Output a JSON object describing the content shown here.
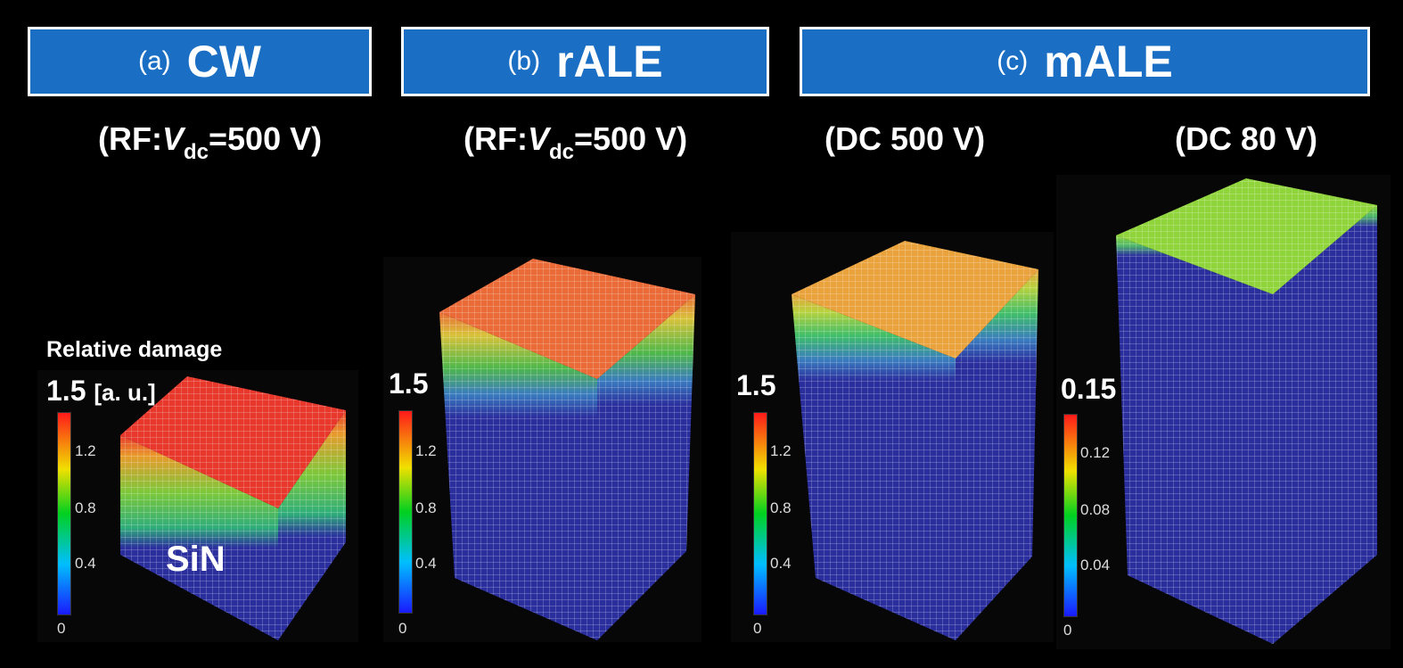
{
  "panels": [
    {
      "tag": "(a)",
      "name": "CW",
      "condition_prefix": "(RF:",
      "condition_v": "V",
      "condition_sub": "dc",
      "condition_suffix": "=500 V)"
    },
    {
      "tag": "(b)",
      "name": "rALE",
      "condition_prefix": "(RF:",
      "condition_v": "V",
      "condition_sub": "dc",
      "condition_suffix": "=500 V)"
    },
    {
      "tag": "(c)",
      "name": "mALE",
      "condition_1": "(DC 500 V)",
      "condition_2": "(DC 80 V)"
    }
  ],
  "colorbar_title": "Relative damage",
  "colorbars": [
    {
      "max": "1.5",
      "unit": "[a. u.]",
      "ticks": [
        "1.2",
        "0.8",
        "0.4",
        "0"
      ]
    },
    {
      "max": "1.5",
      "ticks": [
        "1.2",
        "0.8",
        "0.4",
        "0"
      ]
    },
    {
      "max": "1.5",
      "ticks": [
        "1.2",
        "0.8",
        "0.4",
        "0"
      ]
    },
    {
      "max": "0.15",
      "ticks": [
        "0.12",
        "0.08",
        "0.04",
        "0"
      ]
    }
  ],
  "material_label": "SiN",
  "colors": {
    "header_bg": "#1a6fc4",
    "substrate": "#2b2f9e",
    "top_cw": "#e8382c",
    "top_rale": "#ea6b37",
    "top_male_500": "#e9a23c",
    "top_male_80": "#8fd43a"
  }
}
